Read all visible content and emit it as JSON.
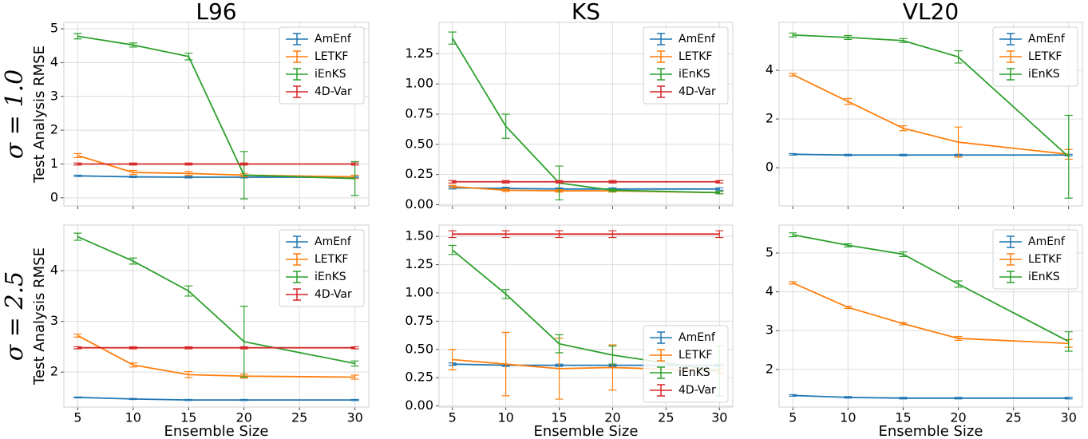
{
  "chart_data": [
    {
      "type": "line",
      "title": "L96",
      "row_label": "σ = 1.0",
      "ylabel": "Test Analysis RMSE",
      "x": [
        5,
        10,
        15,
        20,
        30
      ],
      "xlim": [
        3.75,
        31.25
      ],
      "xticks": [
        5,
        10,
        15,
        20,
        25,
        30
      ],
      "ylim": [
        -0.24,
        5.19
      ],
      "yticks": [
        0,
        1,
        2,
        3,
        4,
        5
      ],
      "grid": true,
      "legend": "upper right",
      "series": [
        {
          "name": "AmEnf",
          "color": "#1f77b4",
          "values": [
            0.65,
            0.62,
            0.61,
            0.61,
            0.61
          ],
          "errors": [
            0.02,
            0.02,
            0.02,
            0.02,
            0.02
          ]
        },
        {
          "name": "LETKF",
          "color": "#ff7f0e",
          "values": [
            1.25,
            0.75,
            0.72,
            0.67,
            0.62
          ],
          "errors": [
            0.06,
            0.06,
            0.06,
            0.05,
            0.05
          ]
        },
        {
          "name": "iEnKS",
          "color": "#2ca02c",
          "values": [
            4.78,
            4.52,
            4.18,
            0.67,
            0.57
          ],
          "errors": [
            0.08,
            0.06,
            0.1,
            0.7,
            0.5
          ]
        },
        {
          "name": "4D-Var",
          "color": "#d62728",
          "values": [
            1.0,
            1.0,
            1.0,
            1.0,
            1.0
          ],
          "errors": [
            0.03,
            0.03,
            0.03,
            0.03,
            0.03
          ]
        }
      ]
    },
    {
      "type": "line",
      "title": "KS",
      "x": [
        5,
        10,
        15,
        20,
        30
      ],
      "xlim": [
        3.75,
        31.25
      ],
      "xticks": [
        5,
        10,
        15,
        20,
        25,
        30
      ],
      "ylim": [
        -0.01,
        1.51
      ],
      "yticks": [
        {
          "value": 0,
          "label": "0.00"
        },
        0.25,
        {
          "value": 0.5,
          "label": "0.50"
        },
        0.75,
        {
          "value": 1,
          "label": "1.00"
        },
        1.25
      ],
      "grid": true,
      "legend": "upper right",
      "series": [
        {
          "name": "AmEnf",
          "color": "#1f77b4",
          "values": [
            0.14,
            0.135,
            0.13,
            0.13,
            0.13
          ],
          "errors": [
            0.01,
            0.01,
            0.01,
            0.01,
            0.01
          ]
        },
        {
          "name": "LETKF",
          "color": "#ff7f0e",
          "values": [
            0.15,
            0.12,
            0.115,
            0.115,
            0.1
          ],
          "errors": [
            0.01,
            0.01,
            0.01,
            0.01,
            0.01
          ]
        },
        {
          "name": "iEnKS",
          "color": "#2ca02c",
          "values": [
            1.38,
            0.65,
            0.18,
            0.12,
            0.1
          ],
          "errors": [
            0.05,
            0.1,
            0.14,
            0.01,
            0.01
          ]
        },
        {
          "name": "4D-Var",
          "color": "#d62728",
          "values": [
            0.19,
            0.19,
            0.19,
            0.19,
            0.19
          ],
          "errors": [
            0.01,
            0.01,
            0.01,
            0.01,
            0.01
          ]
        }
      ]
    },
    {
      "type": "line",
      "title": "VL20",
      "x": [
        5,
        10,
        15,
        20,
        30
      ],
      "xlim": [
        3.75,
        31.25
      ],
      "xticks": [
        5,
        10,
        15,
        20,
        25,
        30
      ],
      "ylim": [
        -1.57,
        5.97
      ],
      "yticks": [
        0,
        2,
        4
      ],
      "grid": true,
      "legend": "upper right",
      "series": [
        {
          "name": "AmEnf",
          "color": "#1f77b4",
          "values": [
            0.55,
            0.52,
            0.52,
            0.52,
            0.52
          ],
          "errors": [
            0.03,
            0.03,
            0.03,
            0.03,
            0.03
          ]
        },
        {
          "name": "LETKF",
          "color": "#ff7f0e",
          "values": [
            3.82,
            2.72,
            1.62,
            1.05,
            0.55
          ],
          "errors": [
            0.05,
            0.12,
            0.1,
            0.62,
            0.2
          ]
        },
        {
          "name": "iEnKS",
          "color": "#2ca02c",
          "values": [
            5.45,
            5.35,
            5.22,
            4.55,
            0.45
          ],
          "errors": [
            0.08,
            0.08,
            0.08,
            0.25,
            1.7
          ]
        }
      ]
    },
    {
      "type": "line",
      "row_label": "σ = 2.5",
      "ylabel": "Test Analysis RMSE",
      "xlabel": "Ensemble Size",
      "x": [
        5,
        10,
        15,
        20,
        30
      ],
      "xlim": [
        3.75,
        31.25
      ],
      "xticks": [
        5,
        10,
        15,
        20,
        25,
        30
      ],
      "ylim": [
        1.31,
        4.9
      ],
      "yticks": [
        2,
        3,
        4
      ],
      "grid": true,
      "legend": "upper right",
      "series": [
        {
          "name": "AmEnf",
          "color": "#1f77b4",
          "values": [
            1.5,
            1.47,
            1.45,
            1.45,
            1.45
          ],
          "errors": [
            0.01,
            0.01,
            0.01,
            0.01,
            0.01
          ]
        },
        {
          "name": "LETKF",
          "color": "#ff7f0e",
          "values": [
            2.72,
            2.14,
            1.95,
            1.92,
            1.9
          ],
          "errors": [
            0.03,
            0.04,
            0.06,
            0.04,
            0.04
          ]
        },
        {
          "name": "iEnKS",
          "color": "#2ca02c",
          "values": [
            4.67,
            4.19,
            3.6,
            2.6,
            2.17
          ],
          "errors": [
            0.07,
            0.06,
            0.1,
            0.7,
            0.05
          ]
        },
        {
          "name": "4D-Var",
          "color": "#d62728",
          "values": [
            2.48,
            2.48,
            2.48,
            2.48,
            2.48
          ],
          "errors": [
            0.02,
            0.02,
            0.02,
            0.02,
            0.02
          ]
        }
      ]
    },
    {
      "type": "line",
      "xlabel": "Ensemble Size",
      "x": [
        5,
        10,
        15,
        20,
        30
      ],
      "xlim": [
        3.75,
        31.25
      ],
      "xticks": [
        5,
        10,
        15,
        20,
        25,
        30
      ],
      "ylim": [
        -0.01,
        1.6
      ],
      "yticks": [
        {
          "value": 0,
          "label": "0.00"
        },
        0.25,
        {
          "value": 0.5,
          "label": "0.50"
        },
        0.75,
        {
          "value": 1,
          "label": "1.00"
        },
        1.25,
        {
          "value": 1.5,
          "label": "1.50"
        }
      ],
      "grid": true,
      "legend": "lower right",
      "series": [
        {
          "name": "AmEnf",
          "color": "#1f77b4",
          "values": [
            0.37,
            0.36,
            0.36,
            0.36,
            0.36
          ],
          "errors": [
            0.01,
            0.01,
            0.01,
            0.01,
            0.01
          ]
        },
        {
          "name": "LETKF",
          "color": "#ff7f0e",
          "values": [
            0.41,
            0.37,
            0.33,
            0.34,
            0.31
          ],
          "errors": [
            0.09,
            0.28,
            0.27,
            0.2,
            0.02
          ]
        },
        {
          "name": "iEnKS",
          "color": "#2ca02c",
          "values": [
            1.38,
            0.99,
            0.55,
            0.45,
            0.31
          ],
          "errors": [
            0.04,
            0.04,
            0.08,
            0.08,
            0.22
          ]
        },
        {
          "name": "4D-Var",
          "color": "#d62728",
          "values": [
            1.52,
            1.52,
            1.52,
            1.52,
            1.52
          ],
          "errors": [
            0.03,
            0.03,
            0.03,
            0.03,
            0.03
          ]
        }
      ]
    },
    {
      "type": "line",
      "xlabel": "Ensemble Size",
      "x": [
        5,
        10,
        15,
        20,
        30
      ],
      "xlim": [
        3.75,
        31.25
      ],
      "xticks": [
        5,
        10,
        15,
        20,
        25,
        30
      ],
      "ylim": [
        1.03,
        5.72
      ],
      "yticks": [
        2,
        3,
        4,
        5
      ],
      "grid": true,
      "legend": "upper right",
      "series": [
        {
          "name": "AmEnf",
          "color": "#1f77b4",
          "values": [
            1.33,
            1.28,
            1.26,
            1.26,
            1.26
          ],
          "errors": [
            0.02,
            0.02,
            0.02,
            0.02,
            0.02
          ]
        },
        {
          "name": "LETKF",
          "color": "#ff7f0e",
          "values": [
            4.23,
            3.6,
            3.18,
            2.8,
            2.67
          ],
          "errors": [
            0.03,
            0.03,
            0.03,
            0.05,
            0.1
          ]
        },
        {
          "name": "iEnKS",
          "color": "#2ca02c",
          "values": [
            5.47,
            5.2,
            4.97,
            4.2,
            2.72
          ],
          "errors": [
            0.05,
            0.04,
            0.06,
            0.08,
            0.25
          ]
        }
      ]
    }
  ]
}
